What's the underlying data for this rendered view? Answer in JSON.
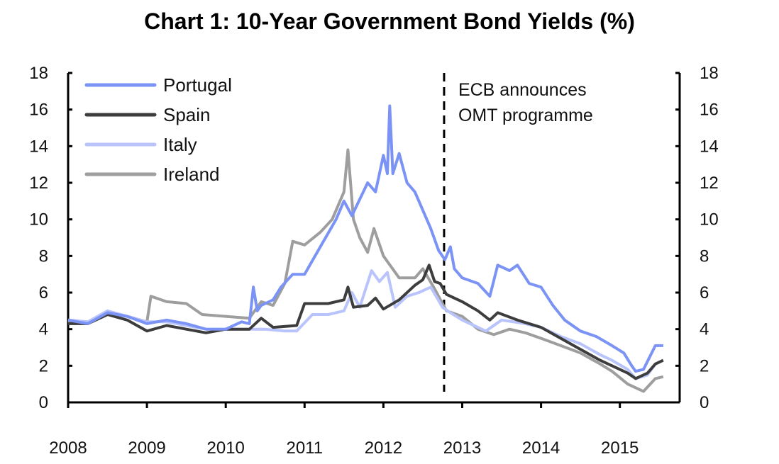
{
  "chart_data": {
    "type": "line",
    "title": "Chart 1: 10-Year Government Bond Yields (%)",
    "xlabel": "",
    "ylabel": "",
    "xlim": [
      2008,
      2015.75
    ],
    "ylim": [
      0,
      18
    ],
    "x_ticks": [
      "2008",
      "2009",
      "2010",
      "2011",
      "2012",
      "2013",
      "2014",
      "2015"
    ],
    "y_ticks": [
      0,
      2,
      4,
      6,
      8,
      10,
      12,
      14,
      16,
      18
    ],
    "grid": false,
    "legend": "top-left",
    "annotation": {
      "x": 2012.77,
      "lines": [
        "ECB announces",
        "OMT programme"
      ],
      "style": "dashed vertical line"
    },
    "series": [
      {
        "name": "Portugal",
        "color": "#7b93f5",
        "points": [
          [
            2008.0,
            4.5
          ],
          [
            2008.25,
            4.3
          ],
          [
            2008.5,
            4.9
          ],
          [
            2008.75,
            4.7
          ],
          [
            2009.0,
            4.3
          ],
          [
            2009.25,
            4.5
          ],
          [
            2009.5,
            4.3
          ],
          [
            2009.75,
            4.0
          ],
          [
            2010.0,
            4.0
          ],
          [
            2010.2,
            4.4
          ],
          [
            2010.3,
            4.3
          ],
          [
            2010.35,
            6.3
          ],
          [
            2010.4,
            5.0
          ],
          [
            2010.45,
            5.3
          ],
          [
            2010.6,
            5.6
          ],
          [
            2010.7,
            6.3
          ],
          [
            2010.85,
            7.0
          ],
          [
            2011.0,
            7.0
          ],
          [
            2011.2,
            8.5
          ],
          [
            2011.4,
            10.0
          ],
          [
            2011.5,
            11.0
          ],
          [
            2011.6,
            10.2
          ],
          [
            2011.8,
            12.0
          ],
          [
            2011.9,
            11.5
          ],
          [
            2012.0,
            13.5
          ],
          [
            2012.05,
            12.5
          ],
          [
            2012.08,
            16.2
          ],
          [
            2012.12,
            12.5
          ],
          [
            2012.2,
            13.6
          ],
          [
            2012.3,
            12.0
          ],
          [
            2012.4,
            11.5
          ],
          [
            2012.5,
            10.5
          ],
          [
            2012.6,
            9.5
          ],
          [
            2012.7,
            8.3
          ],
          [
            2012.78,
            7.8
          ],
          [
            2012.85,
            8.5
          ],
          [
            2012.9,
            7.3
          ],
          [
            2013.0,
            6.8
          ],
          [
            2013.2,
            6.5
          ],
          [
            2013.35,
            5.8
          ],
          [
            2013.45,
            7.5
          ],
          [
            2013.6,
            7.2
          ],
          [
            2013.7,
            7.5
          ],
          [
            2013.85,
            6.5
          ],
          [
            2014.0,
            6.3
          ],
          [
            2014.15,
            5.3
          ],
          [
            2014.3,
            4.5
          ],
          [
            2014.5,
            3.9
          ],
          [
            2014.7,
            3.6
          ],
          [
            2014.9,
            3.1
          ],
          [
            2015.05,
            2.7
          ],
          [
            2015.15,
            2.0
          ],
          [
            2015.2,
            1.7
          ],
          [
            2015.3,
            1.8
          ],
          [
            2015.45,
            3.1
          ],
          [
            2015.55,
            3.1
          ]
        ]
      },
      {
        "name": "Spain",
        "color": "#3d3d3d",
        "points": [
          [
            2008.0,
            4.3
          ],
          [
            2008.25,
            4.3
          ],
          [
            2008.5,
            4.8
          ],
          [
            2008.75,
            4.5
          ],
          [
            2009.0,
            3.9
          ],
          [
            2009.25,
            4.2
          ],
          [
            2009.5,
            4.0
          ],
          [
            2009.75,
            3.8
          ],
          [
            2010.0,
            4.0
          ],
          [
            2010.3,
            4.0
          ],
          [
            2010.45,
            4.6
          ],
          [
            2010.6,
            4.1
          ],
          [
            2010.9,
            4.2
          ],
          [
            2011.0,
            5.4
          ],
          [
            2011.3,
            5.4
          ],
          [
            2011.5,
            5.6
          ],
          [
            2011.55,
            6.3
          ],
          [
            2011.62,
            5.2
          ],
          [
            2011.8,
            5.3
          ],
          [
            2011.9,
            5.7
          ],
          [
            2012.0,
            5.1
          ],
          [
            2012.2,
            5.6
          ],
          [
            2012.4,
            6.4
          ],
          [
            2012.5,
            6.7
          ],
          [
            2012.58,
            7.5
          ],
          [
            2012.65,
            6.6
          ],
          [
            2012.72,
            6.5
          ],
          [
            2012.8,
            5.9
          ],
          [
            2013.0,
            5.5
          ],
          [
            2013.2,
            5.0
          ],
          [
            2013.35,
            4.5
          ],
          [
            2013.45,
            4.9
          ],
          [
            2013.7,
            4.5
          ],
          [
            2014.0,
            4.1
          ],
          [
            2014.25,
            3.5
          ],
          [
            2014.5,
            2.9
          ],
          [
            2014.75,
            2.3
          ],
          [
            2014.9,
            2.0
          ],
          [
            2015.1,
            1.6
          ],
          [
            2015.2,
            1.3
          ],
          [
            2015.35,
            1.6
          ],
          [
            2015.45,
            2.1
          ],
          [
            2015.55,
            2.3
          ]
        ]
      },
      {
        "name": "Italy",
        "color": "#b8c4fb",
        "points": [
          [
            2008.0,
            4.5
          ],
          [
            2008.25,
            4.4
          ],
          [
            2008.5,
            5.0
          ],
          [
            2008.75,
            4.7
          ],
          [
            2009.0,
            4.4
          ],
          [
            2009.25,
            4.4
          ],
          [
            2009.5,
            4.2
          ],
          [
            2009.75,
            4.0
          ],
          [
            2010.0,
            4.0
          ],
          [
            2010.5,
            4.0
          ],
          [
            2010.75,
            3.9
          ],
          [
            2010.9,
            3.9
          ],
          [
            2011.1,
            4.8
          ],
          [
            2011.3,
            4.8
          ],
          [
            2011.5,
            5.0
          ],
          [
            2011.6,
            6.0
          ],
          [
            2011.7,
            5.2
          ],
          [
            2011.85,
            7.2
          ],
          [
            2011.95,
            6.6
          ],
          [
            2012.05,
            7.1
          ],
          [
            2012.15,
            5.2
          ],
          [
            2012.3,
            5.8
          ],
          [
            2012.45,
            6.0
          ],
          [
            2012.6,
            6.3
          ],
          [
            2012.75,
            5.2
          ],
          [
            2012.85,
            4.9
          ],
          [
            2013.0,
            4.5
          ],
          [
            2013.3,
            3.9
          ],
          [
            2013.5,
            4.5
          ],
          [
            2013.8,
            4.3
          ],
          [
            2014.0,
            4.1
          ],
          [
            2014.25,
            3.6
          ],
          [
            2014.5,
            3.2
          ],
          [
            2014.75,
            2.6
          ],
          [
            2014.9,
            2.3
          ],
          [
            2015.1,
            1.8
          ],
          [
            2015.2,
            1.3
          ],
          [
            2015.35,
            1.5
          ],
          [
            2015.45,
            2.1
          ],
          [
            2015.55,
            2.3
          ]
        ]
      },
      {
        "name": "Ireland",
        "color": "#9e9e9e",
        "points": [
          [
            2008.0,
            4.4
          ],
          [
            2008.25,
            4.3
          ],
          [
            2008.5,
            4.9
          ],
          [
            2008.75,
            4.7
          ],
          [
            2009.0,
            4.4
          ],
          [
            2009.05,
            5.8
          ],
          [
            2009.25,
            5.5
          ],
          [
            2009.5,
            5.4
          ],
          [
            2009.7,
            4.8
          ],
          [
            2010.0,
            4.7
          ],
          [
            2010.3,
            4.6
          ],
          [
            2010.45,
            5.5
          ],
          [
            2010.6,
            5.3
          ],
          [
            2010.75,
            6.5
          ],
          [
            2010.85,
            8.8
          ],
          [
            2011.0,
            8.6
          ],
          [
            2011.2,
            9.3
          ],
          [
            2011.35,
            10.0
          ],
          [
            2011.5,
            11.5
          ],
          [
            2011.55,
            13.8
          ],
          [
            2011.62,
            10.0
          ],
          [
            2011.7,
            9.0
          ],
          [
            2011.8,
            8.2
          ],
          [
            2011.88,
            9.5
          ],
          [
            2012.0,
            8.0
          ],
          [
            2012.2,
            6.8
          ],
          [
            2012.4,
            6.8
          ],
          [
            2012.5,
            7.3
          ],
          [
            2012.65,
            6.2
          ],
          [
            2012.8,
            5.0
          ],
          [
            2013.0,
            4.7
          ],
          [
            2013.2,
            4.0
          ],
          [
            2013.4,
            3.7
          ],
          [
            2013.6,
            4.0
          ],
          [
            2013.8,
            3.8
          ],
          [
            2014.0,
            3.5
          ],
          [
            2014.25,
            3.1
          ],
          [
            2014.5,
            2.7
          ],
          [
            2014.75,
            2.1
          ],
          [
            2014.9,
            1.7
          ],
          [
            2015.1,
            1.0
          ],
          [
            2015.25,
            0.7
          ],
          [
            2015.3,
            0.6
          ],
          [
            2015.45,
            1.3
          ],
          [
            2015.55,
            1.4
          ]
        ]
      }
    ]
  }
}
